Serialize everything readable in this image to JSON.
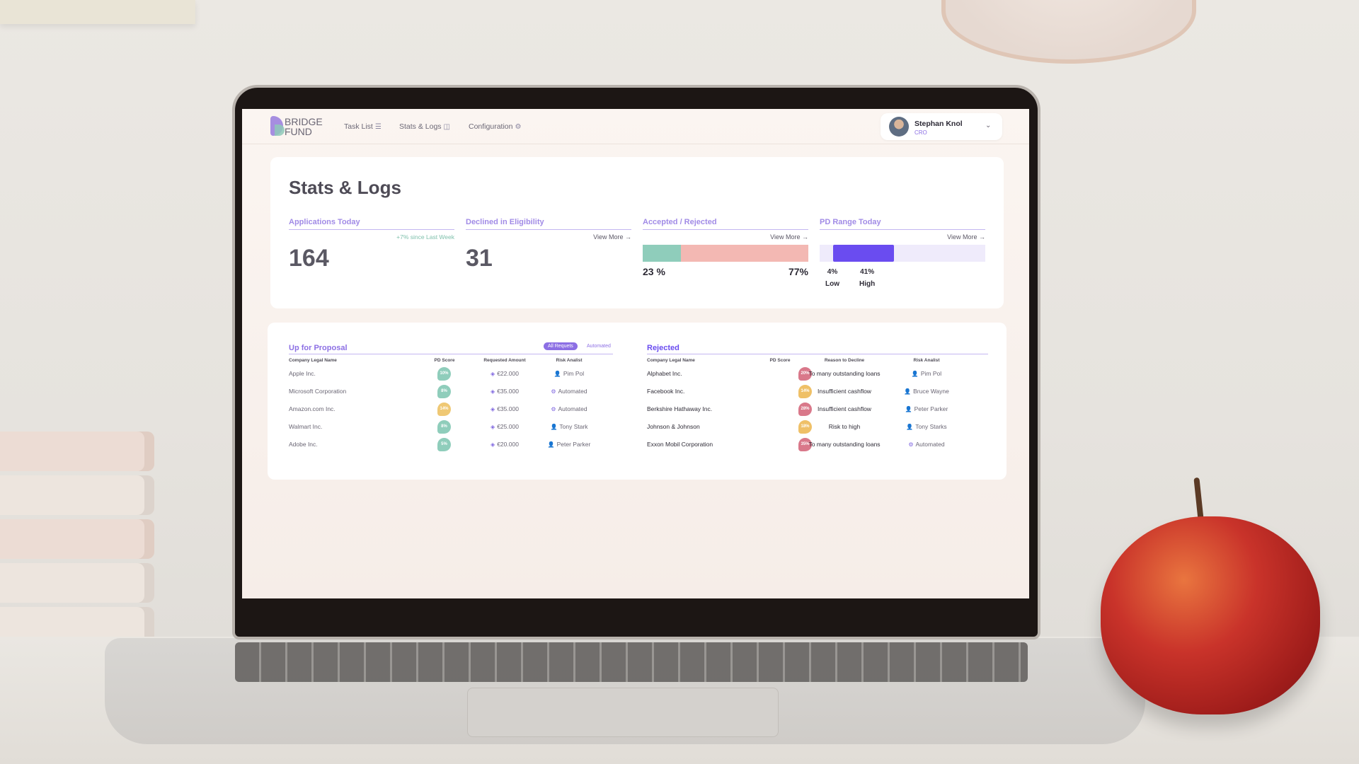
{
  "header": {
    "logo_line1": "BRIDGE",
    "logo_line2": "FUND",
    "nav": [
      {
        "label": "Task List",
        "icon": "list-icon"
      },
      {
        "label": "Stats & Logs",
        "icon": "columns-icon"
      },
      {
        "label": "Configuration",
        "icon": "gear-icon"
      }
    ],
    "user": {
      "name": "Stephan Knol",
      "role": "CRO"
    }
  },
  "page": {
    "title": "Stats & Logs"
  },
  "stats": {
    "applications": {
      "title": "Applications Today",
      "note": "+7% since Last Week",
      "value": "164"
    },
    "declined": {
      "title": "Declined in Eligibility",
      "more": "View More",
      "value": "31"
    },
    "accepted": {
      "title": "Accepted / Rejected",
      "more": "View More",
      "accepted_pct": 23,
      "rejected_pct": 77,
      "left_label": "23 %",
      "right_label": "77%"
    },
    "pd_range": {
      "title": "PD Range Today",
      "more": "View More",
      "low": 4,
      "high": 41,
      "low_label": "4%",
      "high_label": "41%",
      "low_caption": "Low",
      "high_caption": "High"
    }
  },
  "proposal": {
    "title": "Up for Proposal",
    "toggle_active": "All Requets",
    "toggle_idle": "Automated",
    "columns": [
      "Company Legal Name",
      "PD Score",
      "Requested Amount",
      "Risk Analist"
    ],
    "rows": [
      {
        "company": "Apple Inc.",
        "pd": "10%",
        "amount": "€22.000",
        "analyst": "Pim Pol"
      },
      {
        "company": "Microsoft Corporation",
        "pd": "8%",
        "amount": "€35.000",
        "analyst": "Automated"
      },
      {
        "company": "Amazon.com Inc.",
        "pd": "14%",
        "amount": "€35.000",
        "analyst": "Automated"
      },
      {
        "company": "Walmart Inc.",
        "pd": "8%",
        "amount": "€25.000",
        "analyst": "Tony Stark"
      },
      {
        "company": "Adobe Inc.",
        "pd": "5%",
        "amount": "€20.000",
        "analyst": "Peter Parker"
      }
    ]
  },
  "rejected": {
    "title": "Rejected",
    "columns": [
      "Company Legal Name",
      "PD Score",
      "Reason to Decline",
      "Risk Analist"
    ],
    "rows": [
      {
        "company": "Alphabet Inc.",
        "pd": "20%",
        "reason": "To many outstanding loans",
        "analyst": "Pim Pol"
      },
      {
        "company": "Facebook Inc.",
        "pd": "14%",
        "reason": "Insufficient cashflow",
        "analyst": "Bruce Wayne"
      },
      {
        "company": "Berkshire Hathaway Inc.",
        "pd": "28%",
        "reason": "Insufficient cashflow",
        "analyst": "Peter Parker"
      },
      {
        "company": "Johnson & Johnson",
        "pd": "18%",
        "reason": "Risk to high",
        "analyst": "Tony Starks"
      },
      {
        "company": "Exxon Mobil Corporation",
        "pd": "35%",
        "reason": "To many outstanding loans",
        "analyst": "Automated"
      }
    ]
  },
  "colors": {
    "accent": "#8c6fe4",
    "accent_strong": "#6a4cf0",
    "accepted": "#8fcdbb",
    "rejected": "#f3b8b3"
  }
}
